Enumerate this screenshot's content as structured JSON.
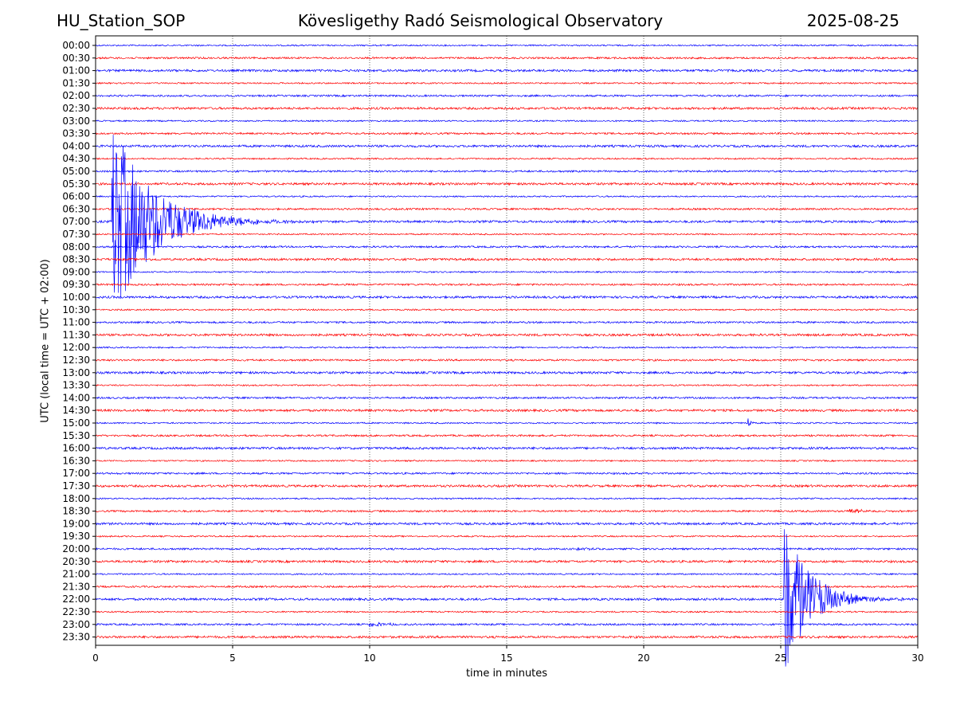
{
  "header": {
    "station": "HU_Station_SOP",
    "observatory": "Kövesligethy Radó Seismological Observatory",
    "date": "2025-08-25"
  },
  "colors": {
    "trace_a": "#0000ff",
    "trace_b": "#ff0000",
    "grid": "#000000"
  },
  "chart_data": {
    "type": "line",
    "xlabel": "time in minutes",
    "ylabel": "UTC (local time = UTC + 02:00)",
    "xlim": [
      0,
      30
    ],
    "xticks": [
      "0",
      "5",
      "10",
      "15",
      "20",
      "25",
      "30"
    ],
    "grid": "vertical dotted at x ticks",
    "rows": [
      "00:00",
      "00:30",
      "01:00",
      "01:30",
      "02:00",
      "02:30",
      "03:00",
      "03:30",
      "04:00",
      "04:30",
      "05:00",
      "05:30",
      "06:00",
      "06:30",
      "07:00",
      "07:30",
      "08:00",
      "08:30",
      "09:00",
      "09:30",
      "10:00",
      "10:30",
      "11:00",
      "11:30",
      "12:00",
      "12:30",
      "13:00",
      "13:30",
      "14:00",
      "14:30",
      "15:00",
      "15:30",
      "16:00",
      "16:30",
      "17:00",
      "17:30",
      "18:00",
      "18:30",
      "19:00",
      "19:30",
      "20:00",
      "20:30",
      "21:00",
      "21:30",
      "22:00",
      "22:30",
      "23:00",
      "23:30"
    ],
    "events": [
      {
        "row": "07:00",
        "onset_min": 0.6,
        "peak_amplitude_rows": 8,
        "duration_min": 8.0
      },
      {
        "row": "22:00",
        "onset_min": 25.1,
        "peak_amplitude_rows": 6.5,
        "duration_min": 5.0
      },
      {
        "row": "15:00",
        "onset_min": 23.8,
        "peak_amplitude_rows": 0.4,
        "duration_min": 0.6
      },
      {
        "row": "20:00",
        "onset_min": 17.5,
        "peak_amplitude_rows": 0.2,
        "duration_min": 2.0
      },
      {
        "row": "18:30",
        "onset_min": 27.5,
        "peak_amplitude_rows": 0.25,
        "duration_min": 2.0
      },
      {
        "row": "23:00",
        "onset_min": 10.0,
        "peak_amplitude_rows": 0.2,
        "duration_min": 3.5
      }
    ]
  }
}
